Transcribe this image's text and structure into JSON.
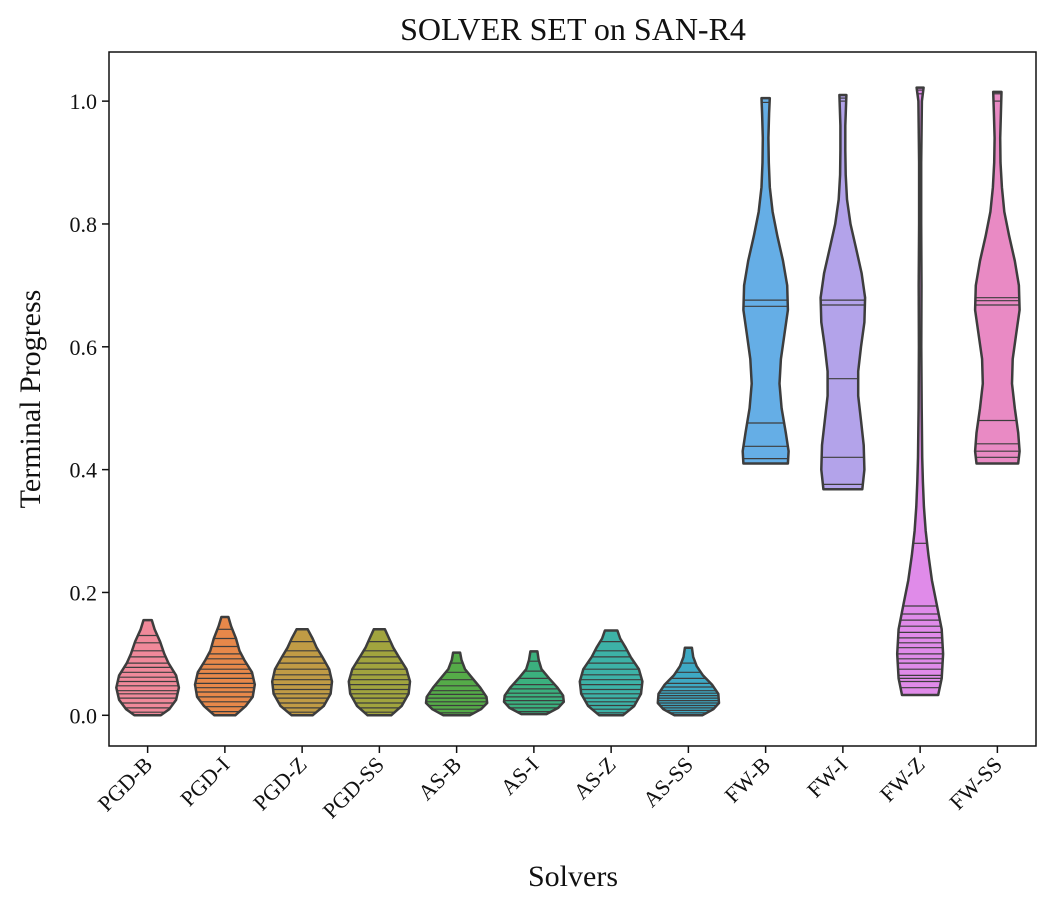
{
  "chart_data": {
    "type": "violin",
    "title": "SOLVER SET on SAN-R4",
    "xlabel": "Solvers",
    "ylabel": "Terminal Progress",
    "ylim": [
      -0.05,
      1.08
    ],
    "yticks": [
      0.0,
      0.2,
      0.4,
      0.6,
      0.8,
      1.0
    ],
    "ytick_labels": [
      "0.0",
      "0.2",
      "0.4",
      "0.6",
      "0.8",
      "1.0"
    ],
    "grid": false,
    "inner": "stick",
    "categories": [
      "PGD-B",
      "PGD-I",
      "PGD-Z",
      "PGD-SS",
      "AS-B",
      "AS-I",
      "AS-Z",
      "AS-SS",
      "FW-B",
      "FW-I",
      "FW-Z",
      "FW-SS"
    ],
    "series": [
      {
        "category": "PGD-B",
        "color": "#f0899a",
        "min": 0.0,
        "max": 0.155,
        "profile": [
          [
            0.0,
            0.38
          ],
          [
            0.01,
            0.62
          ],
          [
            0.025,
            0.82
          ],
          [
            0.045,
            0.9
          ],
          [
            0.065,
            0.82
          ],
          [
            0.085,
            0.6
          ],
          [
            0.1,
            0.48
          ],
          [
            0.12,
            0.36
          ],
          [
            0.14,
            0.2
          ],
          [
            0.155,
            0.12
          ]
        ],
        "samples": [
          0.005,
          0.012,
          0.02,
          0.028,
          0.035,
          0.04,
          0.048,
          0.055,
          0.062,
          0.07,
          0.078,
          0.085,
          0.095,
          0.105,
          0.118,
          0.13
        ]
      },
      {
        "category": "PGD-I",
        "color": "#e7884a",
        "min": 0.0,
        "max": 0.16,
        "profile": [
          [
            0.0,
            0.3
          ],
          [
            0.015,
            0.6
          ],
          [
            0.03,
            0.8
          ],
          [
            0.05,
            0.86
          ],
          [
            0.07,
            0.78
          ],
          [
            0.09,
            0.56
          ],
          [
            0.105,
            0.42
          ],
          [
            0.125,
            0.32
          ],
          [
            0.145,
            0.18
          ],
          [
            0.16,
            0.1
          ]
        ],
        "samples": [
          0.006,
          0.014,
          0.022,
          0.03,
          0.038,
          0.045,
          0.052,
          0.06,
          0.068,
          0.075,
          0.083,
          0.092,
          0.1,
          0.112,
          0.125,
          0.14
        ]
      },
      {
        "category": "PGD-Z",
        "color": "#c09b45",
        "min": 0.0,
        "max": 0.14,
        "profile": [
          [
            0.0,
            0.3
          ],
          [
            0.015,
            0.62
          ],
          [
            0.035,
            0.82
          ],
          [
            0.055,
            0.86
          ],
          [
            0.075,
            0.78
          ],
          [
            0.095,
            0.58
          ],
          [
            0.11,
            0.42
          ],
          [
            0.125,
            0.3
          ],
          [
            0.14,
            0.16
          ]
        ],
        "samples": [
          0.005,
          0.012,
          0.02,
          0.028,
          0.035,
          0.042,
          0.05,
          0.058,
          0.066,
          0.075,
          0.085,
          0.095,
          0.105,
          0.12
        ]
      },
      {
        "category": "PGD-SS",
        "color": "#a1a43e",
        "min": 0.0,
        "max": 0.14,
        "profile": [
          [
            0.0,
            0.34
          ],
          [
            0.015,
            0.64
          ],
          [
            0.035,
            0.84
          ],
          [
            0.055,
            0.88
          ],
          [
            0.075,
            0.78
          ],
          [
            0.095,
            0.56
          ],
          [
            0.11,
            0.4
          ],
          [
            0.125,
            0.28
          ],
          [
            0.14,
            0.16
          ]
        ],
        "samples": [
          0.005,
          0.012,
          0.02,
          0.028,
          0.035,
          0.042,
          0.05,
          0.058,
          0.066,
          0.075,
          0.085,
          0.095,
          0.105,
          0.12
        ]
      },
      {
        "category": "AS-B",
        "color": "#55ab48",
        "min": 0.0,
        "max": 0.102,
        "profile": [
          [
            0.0,
            0.38
          ],
          [
            0.01,
            0.7
          ],
          [
            0.02,
            0.88
          ],
          [
            0.03,
            0.86
          ],
          [
            0.045,
            0.68
          ],
          [
            0.06,
            0.46
          ],
          [
            0.075,
            0.24
          ],
          [
            0.09,
            0.14
          ],
          [
            0.102,
            0.1
          ]
        ],
        "samples": [
          0.004,
          0.01,
          0.016,
          0.022,
          0.028,
          0.034,
          0.04,
          0.048,
          0.058,
          0.07,
          0.085
        ]
      },
      {
        "category": "AS-I",
        "color": "#3bb07e",
        "min": 0.002,
        "max": 0.104,
        "profile": [
          [
            0.002,
            0.36
          ],
          [
            0.012,
            0.7
          ],
          [
            0.022,
            0.86
          ],
          [
            0.032,
            0.84
          ],
          [
            0.045,
            0.68
          ],
          [
            0.06,
            0.44
          ],
          [
            0.075,
            0.22
          ],
          [
            0.09,
            0.14
          ],
          [
            0.104,
            0.1
          ]
        ],
        "samples": [
          0.006,
          0.012,
          0.018,
          0.024,
          0.03,
          0.036,
          0.043,
          0.05,
          0.06,
          0.072,
          0.088
        ]
      },
      {
        "category": "AS-Z",
        "color": "#3db2a7",
        "min": 0.0,
        "max": 0.138,
        "profile": [
          [
            0.0,
            0.34
          ],
          [
            0.015,
            0.66
          ],
          [
            0.035,
            0.86
          ],
          [
            0.055,
            0.9
          ],
          [
            0.075,
            0.8
          ],
          [
            0.095,
            0.56
          ],
          [
            0.11,
            0.42
          ],
          [
            0.125,
            0.26
          ],
          [
            0.138,
            0.18
          ]
        ],
        "samples": [
          0.004,
          0.01,
          0.016,
          0.022,
          0.028,
          0.035,
          0.042,
          0.05,
          0.058,
          0.066,
          0.075,
          0.085,
          0.095,
          0.105,
          0.12
        ]
      },
      {
        "category": "AS-SS",
        "color": "#3ea9c4",
        "min": 0.0,
        "max": 0.11,
        "profile": [
          [
            0.0,
            0.4
          ],
          [
            0.01,
            0.72
          ],
          [
            0.02,
            0.88
          ],
          [
            0.035,
            0.86
          ],
          [
            0.05,
            0.68
          ],
          [
            0.065,
            0.42
          ],
          [
            0.08,
            0.24
          ],
          [
            0.095,
            0.14
          ],
          [
            0.11,
            0.1
          ]
        ],
        "samples": [
          0.004,
          0.008,
          0.012,
          0.016,
          0.02,
          0.024,
          0.028,
          0.032,
          0.036,
          0.04,
          0.046,
          0.052,
          0.06,
          0.07,
          0.085
        ]
      },
      {
        "category": "FW-B",
        "color": "#65aee6",
        "min": 0.41,
        "max": 1.005,
        "profile": [
          [
            0.41,
            0.64
          ],
          [
            0.43,
            0.66
          ],
          [
            0.46,
            0.58
          ],
          [
            0.5,
            0.46
          ],
          [
            0.54,
            0.4
          ],
          [
            0.58,
            0.44
          ],
          [
            0.62,
            0.54
          ],
          [
            0.66,
            0.64
          ],
          [
            0.7,
            0.62
          ],
          [
            0.74,
            0.5
          ],
          [
            0.78,
            0.34
          ],
          [
            0.82,
            0.2
          ],
          [
            0.86,
            0.12
          ],
          [
            0.9,
            0.09
          ],
          [
            0.94,
            0.08
          ],
          [
            0.98,
            0.1
          ],
          [
            1.005,
            0.12
          ]
        ],
        "samples": [
          0.418,
          0.438,
          0.476,
          0.666,
          0.676,
          0.998
        ]
      },
      {
        "category": "FW-I",
        "color": "#b3a3ea",
        "min": 0.368,
        "max": 1.01,
        "profile": [
          [
            0.368,
            0.56
          ],
          [
            0.4,
            0.62
          ],
          [
            0.44,
            0.6
          ],
          [
            0.48,
            0.52
          ],
          [
            0.52,
            0.44
          ],
          [
            0.56,
            0.44
          ],
          [
            0.6,
            0.52
          ],
          [
            0.64,
            0.62
          ],
          [
            0.68,
            0.64
          ],
          [
            0.72,
            0.54
          ],
          [
            0.76,
            0.38
          ],
          [
            0.8,
            0.22
          ],
          [
            0.84,
            0.12
          ],
          [
            0.88,
            0.08
          ],
          [
            0.92,
            0.07
          ],
          [
            0.96,
            0.07
          ],
          [
            1.01,
            0.1
          ]
        ],
        "samples": [
          0.376,
          0.42,
          0.548,
          0.668,
          0.676,
          1.0,
          1.005
        ]
      },
      {
        "category": "FW-Z",
        "color": "#e08be9",
        "min": 0.033,
        "max": 1.022,
        "profile": [
          [
            0.033,
            0.52
          ],
          [
            0.06,
            0.62
          ],
          [
            0.1,
            0.66
          ],
          [
            0.14,
            0.62
          ],
          [
            0.18,
            0.48
          ],
          [
            0.22,
            0.34
          ],
          [
            0.26,
            0.24
          ],
          [
            0.3,
            0.16
          ],
          [
            0.34,
            0.11
          ],
          [
            0.38,
            0.08
          ],
          [
            0.42,
            0.06
          ],
          [
            0.5,
            0.045
          ],
          [
            0.6,
            0.035
          ],
          [
            0.7,
            0.04
          ],
          [
            0.8,
            0.03
          ],
          [
            0.9,
            0.03
          ],
          [
            1.0,
            0.05
          ],
          [
            1.022,
            0.1
          ]
        ],
        "samples": [
          0.045,
          0.055,
          0.06,
          0.065,
          0.075,
          0.085,
          0.092,
          0.1,
          0.11,
          0.118,
          0.126,
          0.135,
          0.145,
          0.155,
          0.165,
          0.178,
          0.28,
          1.012,
          1.018
        ]
      },
      {
        "category": "FW-SS",
        "color": "#e98ac4",
        "min": 0.41,
        "max": 1.015,
        "profile": [
          [
            0.41,
            0.6
          ],
          [
            0.43,
            0.64
          ],
          [
            0.46,
            0.6
          ],
          [
            0.5,
            0.5
          ],
          [
            0.54,
            0.42
          ],
          [
            0.58,
            0.44
          ],
          [
            0.62,
            0.54
          ],
          [
            0.66,
            0.64
          ],
          [
            0.7,
            0.62
          ],
          [
            0.74,
            0.5
          ],
          [
            0.78,
            0.34
          ],
          [
            0.82,
            0.2
          ],
          [
            0.86,
            0.13
          ],
          [
            0.9,
            0.09
          ],
          [
            0.94,
            0.08
          ],
          [
            0.98,
            0.1
          ],
          [
            1.015,
            0.12
          ]
        ],
        "samples": [
          0.42,
          0.43,
          0.442,
          0.48,
          0.668,
          0.675,
          0.68,
          1.0,
          1.012
        ]
      }
    ]
  }
}
